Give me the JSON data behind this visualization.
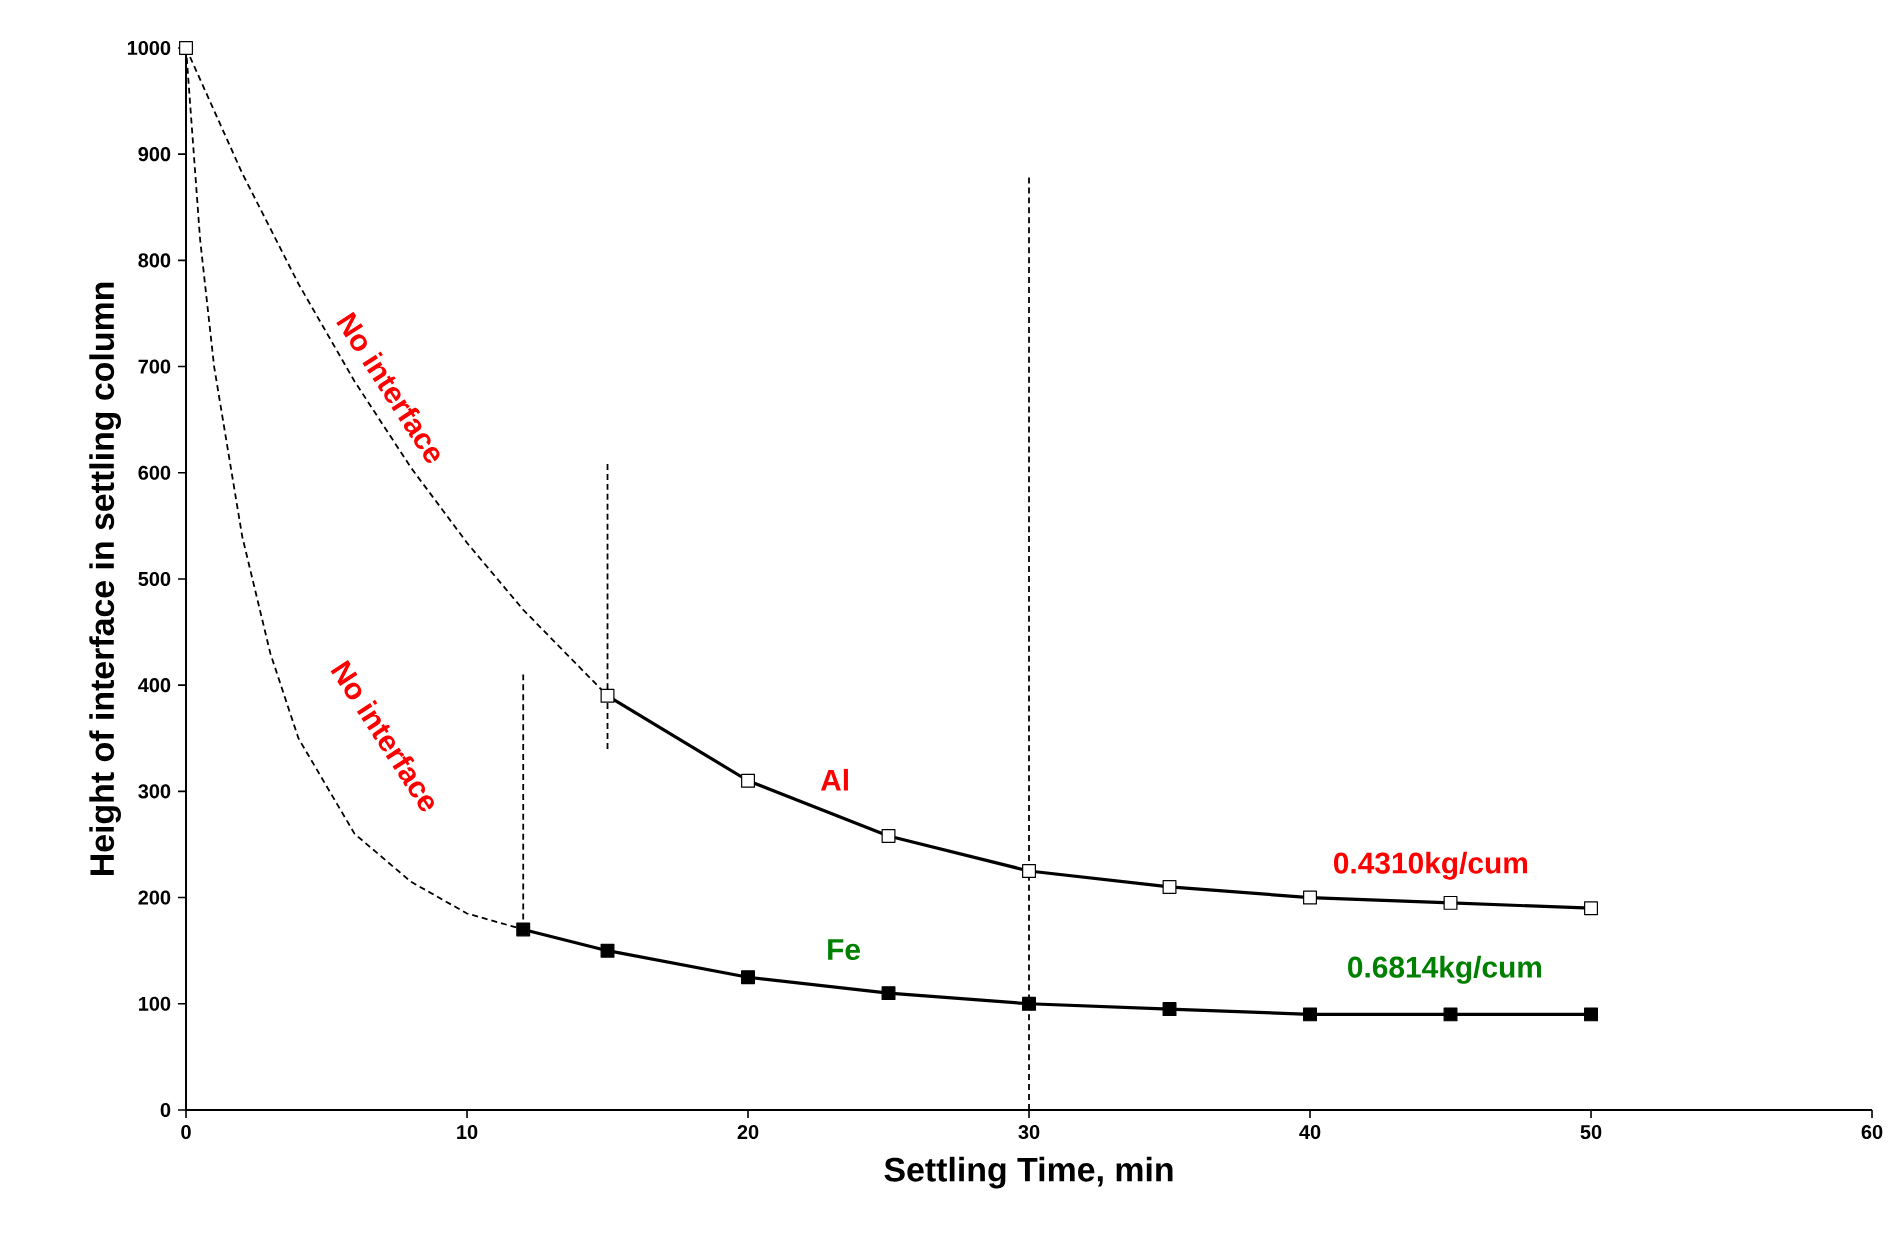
{
  "chart_data": {
    "type": "line",
    "xlabel": "Settling Time, min",
    "ylabel": "Height of interface in settling column",
    "xlim": [
      0,
      60
    ],
    "ylim": [
      0,
      1000
    ],
    "xticks": [
      0,
      10,
      20,
      {
        "value": 30,
        "label": "30"
      },
      40,
      50,
      60
    ],
    "yticks": [
      0,
      100,
      200,
      300,
      400,
      500,
      600,
      700,
      800,
      900,
      1000
    ],
    "grid": false,
    "series": [
      {
        "type": "scatter",
        "color": "#ffffff",
        "marker": "square",
        "x": [
          0
        ],
        "values": [
          1000
        ]
      },
      {
        "color": "#000000",
        "marker": "square",
        "line_style": "solid",
        "x": [
          15,
          20,
          25,
          30,
          35,
          40,
          45,
          50
        ],
        "values": [
          390,
          310,
          258,
          225,
          210,
          200,
          195,
          190
        ]
      },
      {
        "color": "#000000",
        "marker": "square",
        "line_style": "solid",
        "x": [
          12,
          15,
          20,
          25,
          30,
          35,
          40,
          45,
          50
        ],
        "values": [
          170,
          150,
          125,
          110,
          100,
          95,
          90,
          90,
          90
        ]
      },
      {
        "color": "#000000",
        "marker": "none",
        "line_style": "dashed",
        "x": [
          0,
          2,
          4,
          6,
          8,
          10,
          12,
          15
        ],
        "values": [
          1000,
          882,
          778,
          686,
          605,
          534,
          471,
          390
        ]
      },
      {
        "color": "#000000",
        "marker": "none",
        "line_style": "dashed",
        "x": [
          0,
          0.5,
          1,
          2,
          3,
          4,
          6,
          8,
          10,
          12
        ],
        "values": [
          1000,
          820,
          700,
          540,
          430,
          350,
          260,
          215,
          185,
          170
        ]
      },
      {
        "color": "#000000",
        "marker": "none",
        "line_style": "dashed",
        "x": [
          15,
          15
        ],
        "values": [
          340,
          610
        ]
      },
      {
        "color": "#000000",
        "marker": "none",
        "line_style": "dashed",
        "x": [
          12,
          12
        ],
        "values": [
          170,
          410
        ]
      }
    ],
    "ref_lines": [
      {
        "axis": "x",
        "value": 30,
        "color": "#000000",
        "line_style": "dashed"
      }
    ],
    "annotations": [
      "No interface",
      "No interface",
      "Al",
      "Fe",
      "0.4310kg/cum",
      "0.6814kg/cum"
    ]
  }
}
